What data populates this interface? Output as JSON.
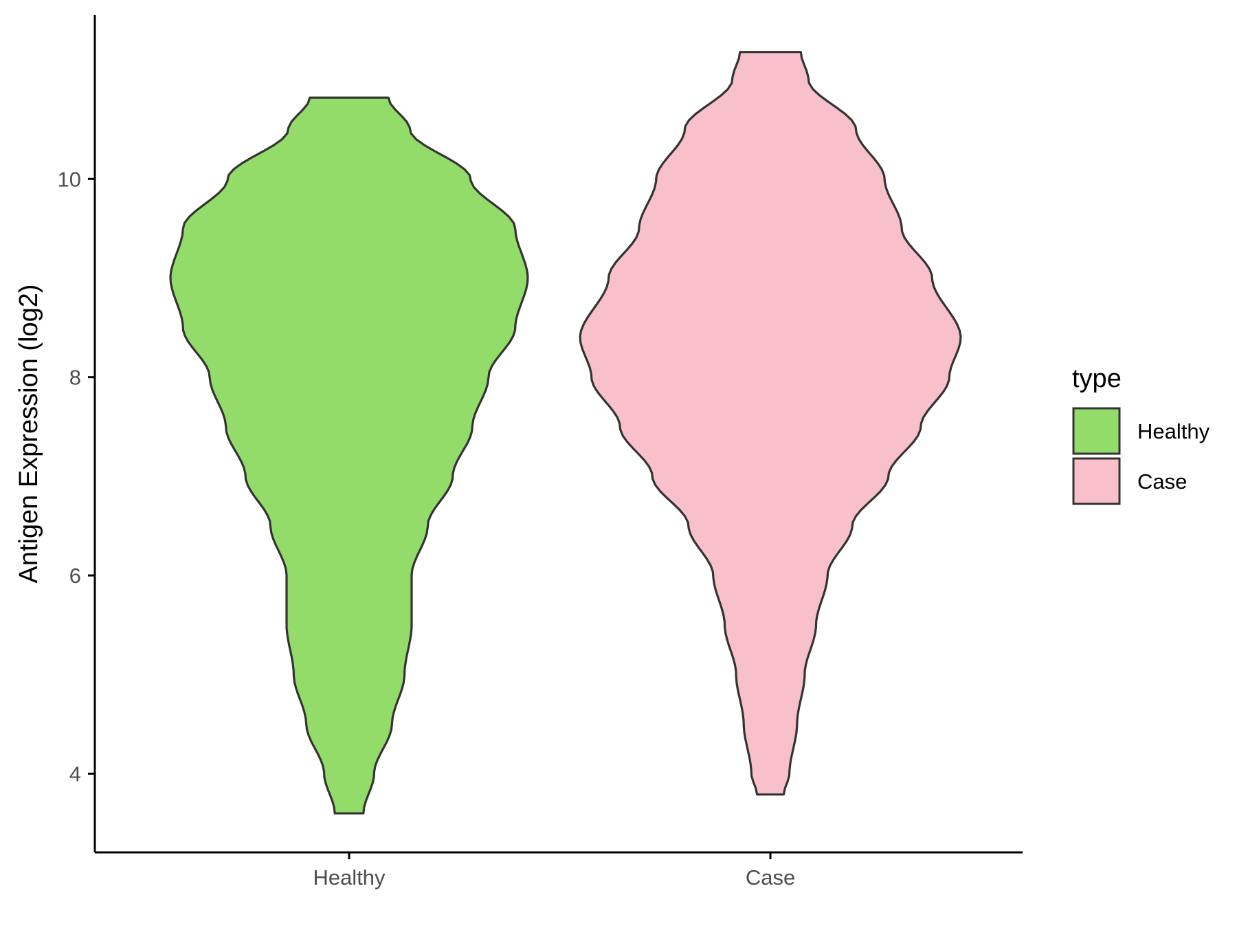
{
  "chart_data": {
    "type": "violin",
    "title": "",
    "xlabel": "",
    "ylabel": "Antigen Expression (log2)",
    "categories": [
      "Healthy",
      "Case"
    ],
    "yticks": [
      4,
      6,
      8,
      10
    ],
    "ylim": [
      3.2,
      11.6
    ],
    "grid": false,
    "legend": {
      "title": "type",
      "position": "right",
      "entries": [
        "Healthy",
        "Case"
      ]
    },
    "colors": {
      "Healthy": "#93dc6a",
      "Case": "#f7c0cb",
      "outline": "#333333",
      "axis": "#000000"
    },
    "violins": [
      {
        "name": "Healthy",
        "min": 3.6,
        "max": 10.82,
        "density_profile": [
          [
            3.6,
            0.08
          ],
          [
            4.0,
            0.14
          ],
          [
            4.5,
            0.24
          ],
          [
            5.0,
            0.31
          ],
          [
            5.5,
            0.35
          ],
          [
            6.0,
            0.35
          ],
          [
            6.5,
            0.44
          ],
          [
            7.0,
            0.58
          ],
          [
            7.5,
            0.69
          ],
          [
            8.0,
            0.78
          ],
          [
            8.5,
            0.93
          ],
          [
            9.0,
            1.0
          ],
          [
            9.5,
            0.93
          ],
          [
            10.0,
            0.68
          ],
          [
            10.5,
            0.34
          ],
          [
            10.82,
            0.22
          ]
        ]
      },
      {
        "name": "Case",
        "min": 3.79,
        "max": 11.28,
        "density_profile": [
          [
            3.79,
            0.07
          ],
          [
            4.0,
            0.1
          ],
          [
            4.5,
            0.14
          ],
          [
            5.0,
            0.18
          ],
          [
            5.5,
            0.24
          ],
          [
            6.0,
            0.3
          ],
          [
            6.5,
            0.43
          ],
          [
            7.0,
            0.62
          ],
          [
            7.5,
            0.79
          ],
          [
            8.0,
            0.94
          ],
          [
            8.4,
            1.0
          ],
          [
            9.0,
            0.85
          ],
          [
            9.5,
            0.69
          ],
          [
            10.0,
            0.6
          ],
          [
            10.5,
            0.45
          ],
          [
            11.0,
            0.2
          ],
          [
            11.28,
            0.16
          ]
        ]
      }
    ]
  }
}
